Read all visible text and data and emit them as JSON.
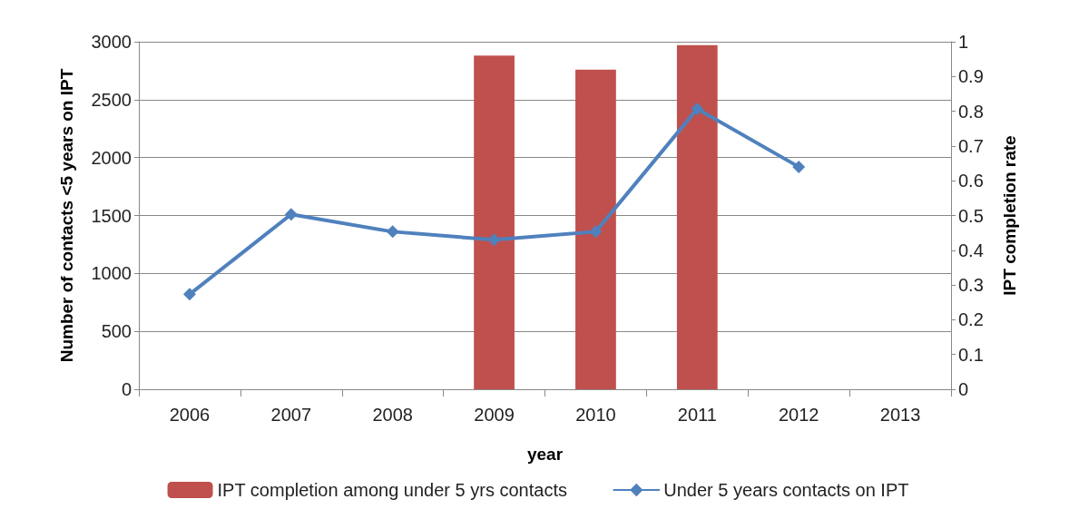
{
  "chart_data": {
    "type": "bar",
    "xlabel": "year",
    "ylabel": "Number of contacts <5 years on IPT",
    "y2label": "IPT completion rate",
    "categories": [
      "2006",
      "2007",
      "2008",
      "2009",
      "2010",
      "2011",
      "2012",
      "2013"
    ],
    "series": [
      {
        "name": "IPT completion among under 5 yrs contacts",
        "axis": "y2",
        "color": "#c0504d",
        "values": [
          null,
          null,
          null,
          0.96,
          0.92,
          0.99,
          null,
          null
        ]
      },
      {
        "name": "Under 5 years contacts on IPT",
        "type": "line",
        "axis": "y",
        "color": "#4f81bd",
        "marker": "diamond",
        "values": [
          820,
          1510,
          1360,
          1290,
          1360,
          2420,
          1920,
          null
        ]
      }
    ],
    "ylim": [
      0,
      3000
    ],
    "yticks": [
      0,
      500,
      1000,
      1500,
      2000,
      2500,
      3000
    ],
    "y2lim": [
      0,
      1
    ],
    "y2ticks": [
      0,
      0.1,
      0.2,
      0.3,
      0.4,
      0.5,
      0.6,
      0.7,
      0.8,
      0.9,
      1
    ],
    "grid": "y",
    "legend": "bottom"
  }
}
